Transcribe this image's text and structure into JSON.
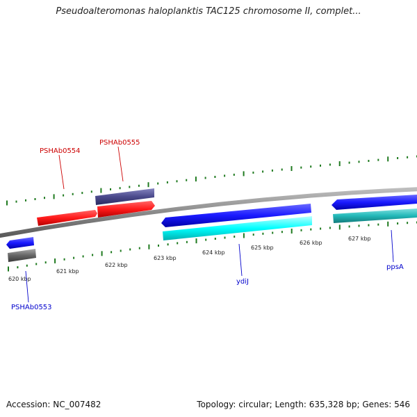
{
  "title": "Pseudoalteromonas haloplanktis TAC125 chromosome II, complet...",
  "footer": {
    "accession": "Accession: NC_007482",
    "summary": "Topology: circular; Length: 635,328 bp; Genes: 546"
  },
  "colors": {
    "backbone": "#8a8a8a",
    "tick": "#1f7a1f",
    "red_gene": "#ff1a1a",
    "navy_gene": "#4b4a8c",
    "blue_gene": "#1a1aff",
    "cyan_gene": "#00ffff",
    "teal_gene": "#22b8b8",
    "gray_gene": "#666666",
    "label_red": "#cc0000",
    "label_blue": "#0000cc"
  },
  "scale_labels": [
    "620 kbp",
    "621 kbp",
    "622 kbp",
    "623 kbp",
    "624 kbp",
    "625 kbp",
    "626 kbp",
    "627 kbp"
  ],
  "gene_labels": [
    "PSHAb0554",
    "PSHAb0555",
    "PSHAb0553",
    "ydiJ",
    "ppsA"
  ]
}
